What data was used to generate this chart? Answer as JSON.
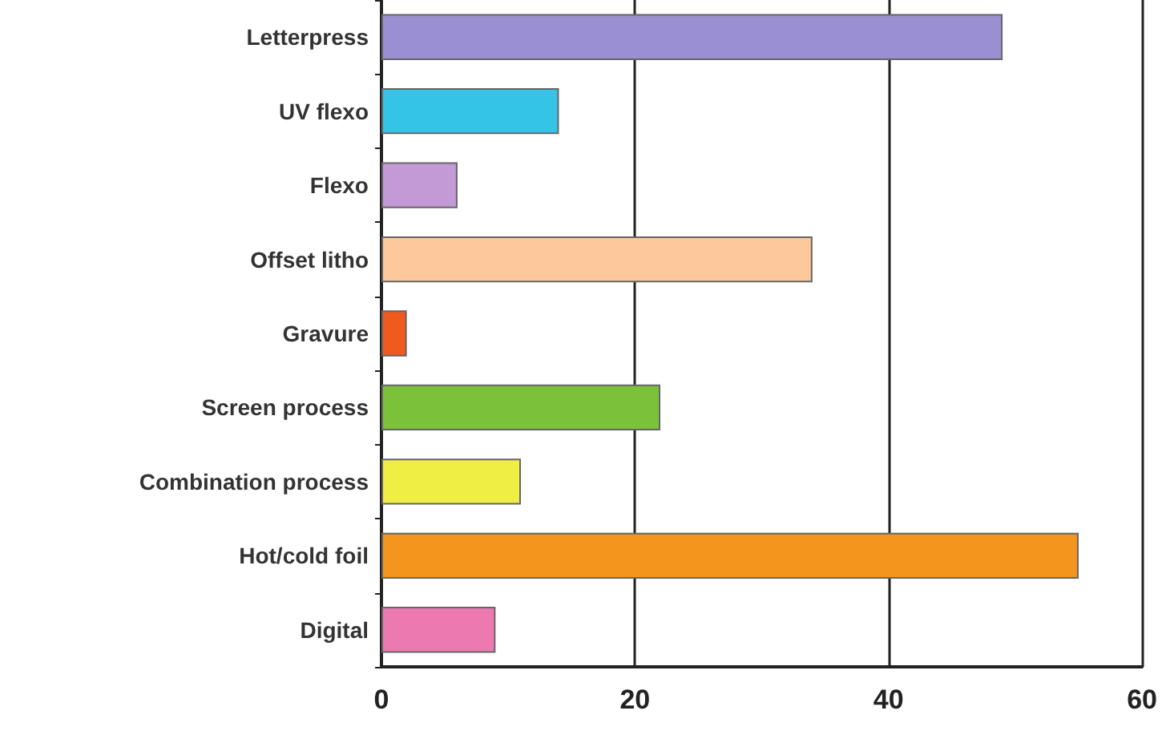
{
  "chart_data": {
    "type": "bar",
    "orientation": "horizontal",
    "categories": [
      "Letterpress",
      "UV flexo",
      "Flexo",
      "Offset litho",
      "Gravure",
      "Screen process",
      "Combination process",
      "Hot/cold foil",
      "Digital"
    ],
    "values": [
      49,
      14,
      6,
      34,
      2,
      22,
      11,
      55,
      9
    ],
    "colors": [
      "#9a8fd0",
      "#33c4e8",
      "#c49ad6",
      "#fdc99a",
      "#f05a1e",
      "#7cc13a",
      "#eeee44",
      "#f4961e",
      "#ec7ab0"
    ],
    "xlim": [
      0,
      60
    ],
    "xticks": [
      0,
      20,
      40,
      60
    ],
    "grid": "x"
  }
}
